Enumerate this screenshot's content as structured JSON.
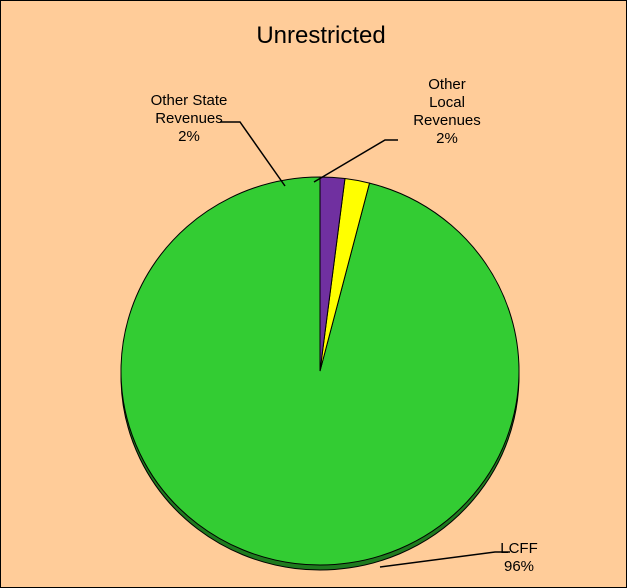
{
  "chart_data": {
    "type": "pie",
    "title": "Unrestricted",
    "slices": [
      {
        "name": "LCFF",
        "label_lines": [
          "LCFF"
        ],
        "value": 96,
        "percent_label": "96%",
        "color": "#33cc33"
      },
      {
        "name": "Other State Revenues",
        "label_lines": [
          "Other State",
          "Revenues"
        ],
        "value": 2,
        "percent_label": "2%",
        "color": "#ffff00"
      },
      {
        "name": "Other Local Revenues",
        "label_lines": [
          "Other",
          "Local",
          "Revenues"
        ],
        "value": 2,
        "percent_label": "2%",
        "color": "#7030a0"
      }
    ]
  }
}
